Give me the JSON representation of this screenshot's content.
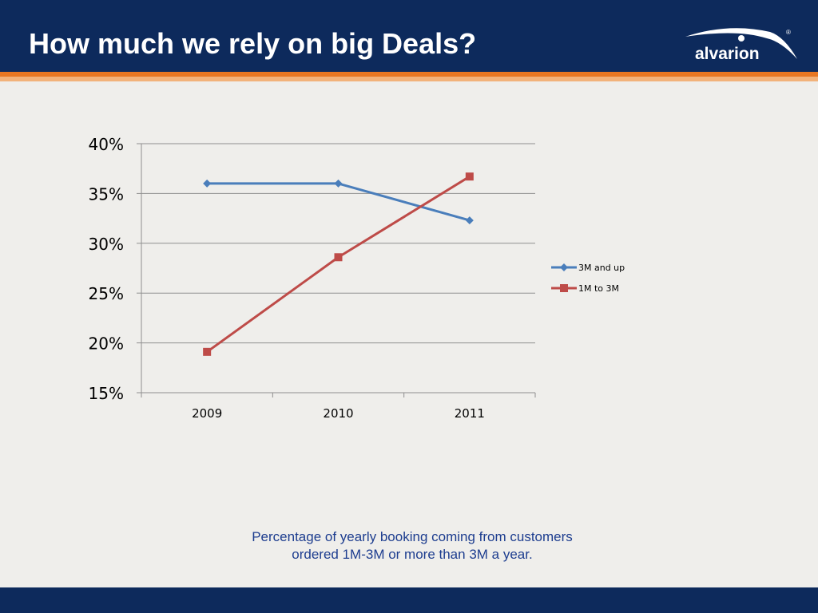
{
  "slide": {
    "title": "How much we rely on big Deals?",
    "logo_text": "alvarion",
    "logo_mark": "®",
    "caption_line1": "Percentage of yearly booking coming from customers",
    "caption_line2": "ordered 1M-3M or more than 3M a year."
  },
  "colors": {
    "header_bg": "#0d2a5c",
    "accent_orange": "#e87722",
    "series_blue": "#4a7ebb",
    "series_red": "#be4b48",
    "caption": "#1d3d8f"
  },
  "chart_data": {
    "type": "line",
    "x": [
      "2009",
      "2010",
      "2011"
    ],
    "series": [
      {
        "name": "3M and up",
        "marker": "diamond",
        "color": "#4a7ebb",
        "values": [
          36.0,
          36.0,
          32.3
        ]
      },
      {
        "name": "1M to 3M",
        "marker": "square",
        "color": "#be4b48",
        "values": [
          19.1,
          28.6,
          36.7
        ]
      }
    ],
    "ylim": [
      15,
      40
    ],
    "yticks": [
      "15%",
      "20%",
      "25%",
      "30%",
      "35%",
      "40%"
    ],
    "ytick_values": [
      15,
      20,
      25,
      30,
      35,
      40
    ],
    "grid": true,
    "legend": "right",
    "title": "",
    "xlabel": "",
    "ylabel": ""
  }
}
